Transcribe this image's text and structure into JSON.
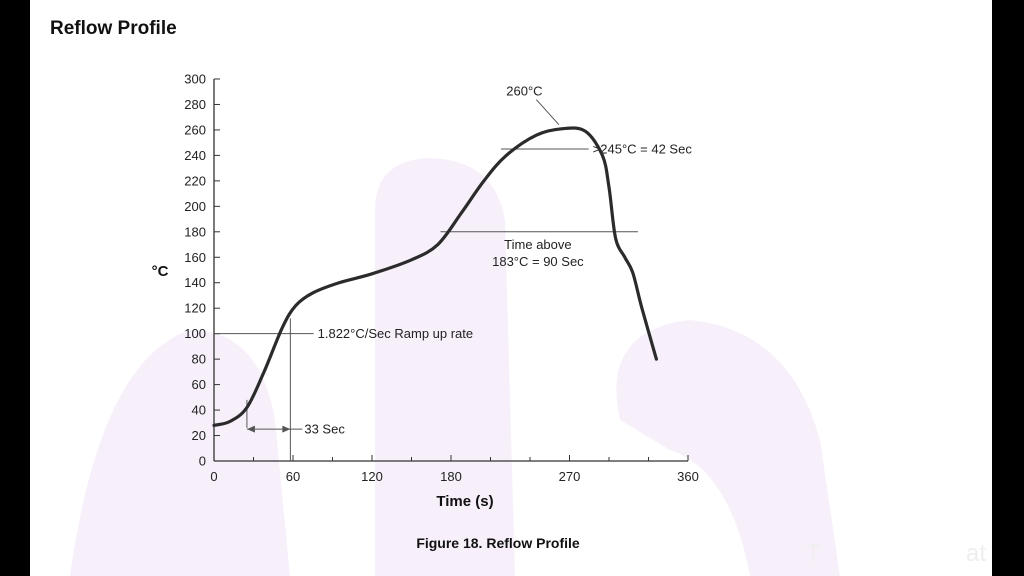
{
  "page": {
    "heading": "Reflow Profile",
    "caption": "Figure 18. Reflow Profile",
    "corner_text": "at",
    "ghost_text": "T"
  },
  "colors": {
    "curve": "#2b2b2b",
    "axis": "#333333",
    "guide": "#555555",
    "watermark": "#f7f0fb"
  },
  "chart_data": {
    "type": "line",
    "title": "Figure 18. Reflow Profile",
    "xlabel": "Time (s)",
    "ylabel": "°C",
    "xlim": [
      0,
      360
    ],
    "ylim": [
      0,
      300
    ],
    "x_ticks": [
      0,
      60,
      120,
      180,
      270,
      360
    ],
    "y_ticks": [
      0,
      20,
      40,
      60,
      80,
      100,
      120,
      140,
      160,
      180,
      200,
      220,
      240,
      260,
      280,
      300
    ],
    "series": [
      {
        "name": "Reflow profile",
        "points": [
          [
            0,
            28
          ],
          [
            12,
            31
          ],
          [
            25,
            42
          ],
          [
            38,
            70
          ],
          [
            52,
            105
          ],
          [
            62,
            122
          ],
          [
            75,
            132
          ],
          [
            95,
            140
          ],
          [
            120,
            147
          ],
          [
            150,
            158
          ],
          [
            170,
            170
          ],
          [
            188,
            195
          ],
          [
            205,
            220
          ],
          [
            222,
            240
          ],
          [
            245,
            256
          ],
          [
            265,
            261
          ],
          [
            282,
            259
          ],
          [
            295,
            240
          ],
          [
            300,
            215
          ],
          [
            305,
            175
          ],
          [
            312,
            160
          ],
          [
            318,
            148
          ],
          [
            325,
            120
          ],
          [
            336,
            80
          ]
        ]
      }
    ],
    "annotations": {
      "peak": {
        "label": "260°C",
        "x": 265,
        "y": 261,
        "text_x": 222,
        "text_y": 287
      },
      "above_245": {
        "label": ">245°C = 42 Sec",
        "y": 245,
        "x_start": 218,
        "x_end": 280
      },
      "above_183": {
        "label_line1": "Time above",
        "label_line2": "183°C = 90 Sec",
        "y": 180,
        "x_start": 172,
        "x_end": 322
      },
      "ramp": {
        "label": "1.822°C/Sec Ramp up rate",
        "y": 100,
        "x_start": 0,
        "x_end": 62,
        "x_vline": 58
      },
      "duration": {
        "label": "33 Sec",
        "x_start": 25,
        "x_end": 58,
        "y": 25
      }
    }
  }
}
